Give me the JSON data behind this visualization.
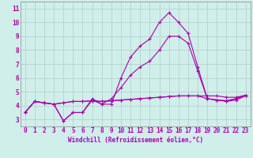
{
  "xlabel": "Windchill (Refroidissement éolien,°C)",
  "background_color": "#d0eeea",
  "grid_color": "#b0ccc8",
  "line_color": "#aa00aa",
  "xlim": [
    -0.5,
    23.5
  ],
  "ylim": [
    2.5,
    11.5
  ],
  "xticks": [
    0,
    1,
    2,
    3,
    4,
    5,
    6,
    7,
    8,
    9,
    10,
    11,
    12,
    13,
    14,
    15,
    16,
    17,
    18,
    19,
    20,
    21,
    22,
    23
  ],
  "yticks": [
    3,
    4,
    5,
    6,
    7,
    8,
    9,
    10,
    11
  ],
  "series": [
    [
      3.5,
      4.3,
      4.2,
      4.1,
      2.9,
      3.5,
      3.5,
      4.5,
      4.1,
      4.1,
      6.0,
      7.5,
      8.3,
      8.8,
      10.0,
      10.7,
      10.0,
      9.2,
      6.8,
      4.5,
      4.4,
      4.35,
      4.5,
      4.75
    ],
    [
      3.5,
      4.3,
      4.2,
      4.1,
      2.9,
      3.5,
      3.5,
      4.4,
      4.1,
      4.5,
      5.3,
      6.2,
      6.8,
      7.2,
      8.0,
      9.0,
      9.0,
      8.5,
      6.5,
      4.5,
      4.4,
      4.3,
      4.4,
      4.7
    ],
    [
      3.5,
      4.3,
      4.2,
      4.1,
      4.2,
      4.3,
      4.3,
      4.35,
      4.3,
      4.35,
      4.4,
      4.45,
      4.5,
      4.55,
      4.6,
      4.65,
      4.7,
      4.7,
      4.7,
      4.7,
      4.7,
      4.6,
      4.6,
      4.75
    ],
    [
      3.5,
      4.3,
      4.2,
      4.1,
      4.2,
      4.3,
      4.3,
      4.35,
      4.3,
      4.35,
      4.4,
      4.45,
      4.5,
      4.55,
      4.6,
      4.65,
      4.7,
      4.7,
      4.7,
      4.5,
      4.4,
      4.35,
      4.5,
      4.75
    ]
  ],
  "tick_fontsize": 5.5,
  "xlabel_fontsize": 5.5
}
